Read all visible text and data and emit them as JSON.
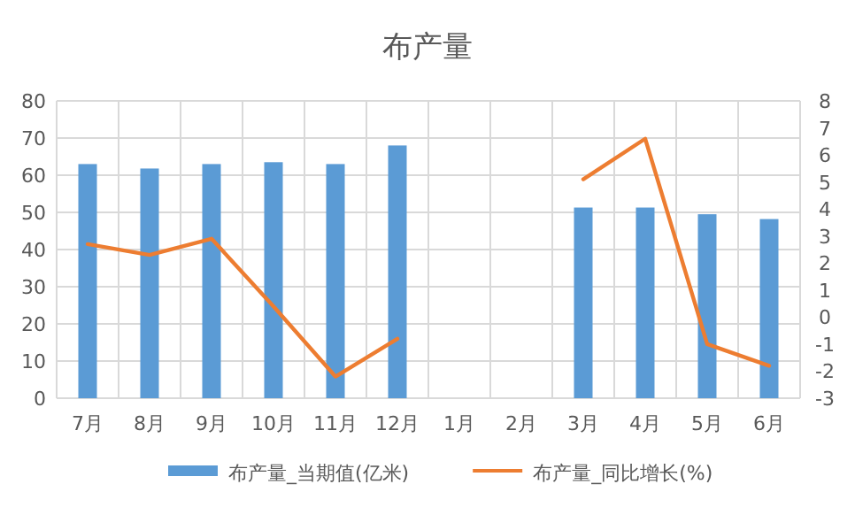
{
  "chart_data": {
    "type": "bar",
    "title": "布产量",
    "categories": [
      "7月",
      "8月",
      "9月",
      "10月",
      "11月",
      "12月",
      "1月",
      "2月",
      "3月",
      "4月",
      "5月",
      "6月"
    ],
    "series": [
      {
        "name": "布产量_当期值(亿米)",
        "color": "#5b9bd5",
        "values": [
          63,
          61.8,
          63,
          63.5,
          63,
          68,
          null,
          null,
          51.3,
          51.3,
          49.5,
          48.2
        ]
      },
      {
        "name": "布产量_同比增长(%)",
        "type": "line",
        "axis": "y2",
        "color": "#ed7d31",
        "values": [
          2.7,
          2.3,
          2.9,
          0.4,
          -2.2,
          -0.8,
          null,
          null,
          5.1,
          6.6,
          -1.0,
          -1.8
        ]
      }
    ],
    "ylim": [
      0,
      80
    ],
    "yticks": [
      0,
      10,
      20,
      30,
      40,
      50,
      60,
      70,
      80
    ],
    "y2lim": [
      -3,
      8
    ],
    "y2ticks": [
      -3,
      -2,
      -1,
      0,
      1,
      2,
      3,
      4,
      5,
      6,
      7,
      8
    ],
    "grid": true,
    "legend": "bottom",
    "marker": "none",
    "line_style": "solid"
  }
}
